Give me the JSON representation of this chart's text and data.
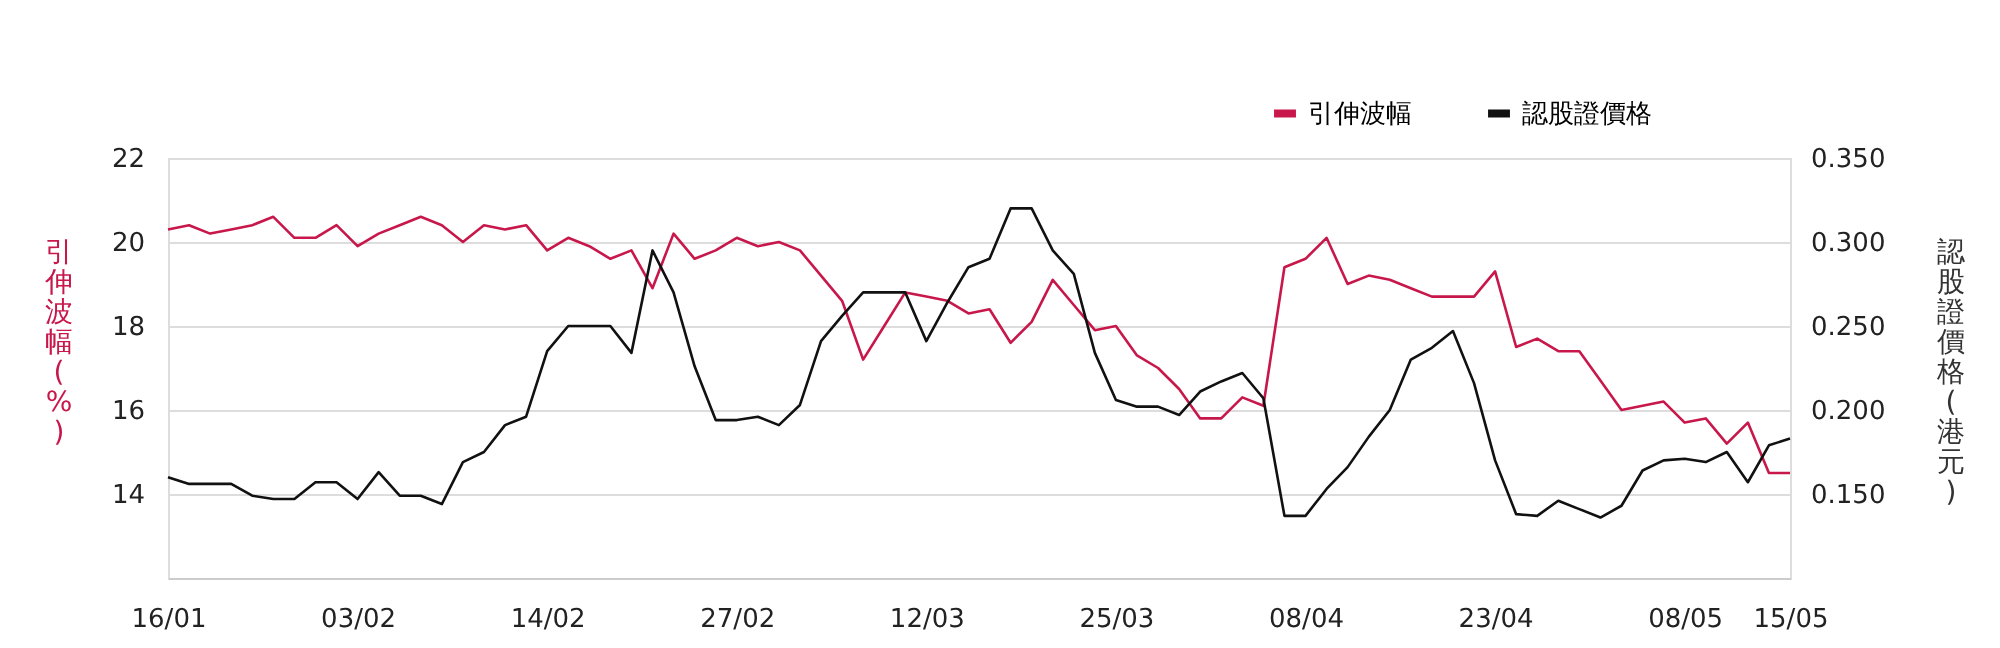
{
  "chart_data": {
    "type": "line",
    "ylabel": "引伸波幅(%)",
    "y2label": "認股證價格(港元)",
    "categories": [
      "16/01",
      null,
      null,
      null,
      null,
      null,
      null,
      null,
      null,
      "03/02",
      null,
      null,
      null,
      null,
      null,
      null,
      null,
      null,
      "14/02",
      null,
      null,
      null,
      null,
      null,
      null,
      null,
      null,
      "27/02",
      null,
      null,
      null,
      null,
      null,
      null,
      null,
      null,
      "12/03",
      null,
      null,
      null,
      null,
      null,
      null,
      null,
      null,
      "25/03",
      null,
      null,
      null,
      null,
      null,
      null,
      null,
      null,
      "08/04",
      null,
      null,
      null,
      null,
      null,
      null,
      null,
      null,
      "23/04",
      null,
      null,
      null,
      null,
      null,
      null,
      null,
      null,
      "08/05",
      null,
      null,
      null,
      null,
      "15/05"
    ],
    "series": [
      {
        "name": "引伸波幅",
        "color": "#c8174a",
        "axis": "y",
        "values": [
          20.3,
          20.4,
          20.2,
          20.3,
          20.4,
          20.6,
          20.1,
          20.1,
          20.4,
          19.9,
          20.2,
          20.4,
          20.6,
          20.4,
          20.0,
          20.4,
          20.3,
          20.4,
          19.8,
          20.1,
          19.9,
          19.6,
          19.8,
          18.9,
          20.2,
          19.6,
          19.8,
          20.1,
          19.9,
          20.0,
          19.8,
          19.2,
          18.6,
          17.2,
          18.0,
          18.8,
          18.7,
          18.6,
          18.3,
          18.4,
          17.6,
          18.1,
          19.1,
          18.5,
          17.9,
          18.0,
          17.3,
          17.0,
          16.5,
          15.8,
          15.8,
          16.3,
          16.1,
          19.4,
          19.6,
          20.1,
          19.0,
          19.2,
          19.1,
          18.9,
          18.7,
          18.7,
          18.7,
          19.3,
          17.5,
          17.7,
          17.4,
          17.4,
          16.7,
          16.0,
          16.1,
          16.2,
          15.7,
          15.8,
          15.2,
          15.7,
          14.5,
          14.5
        ]
      },
      {
        "name": "認股證價格",
        "color": "#111111",
        "axis": "y2",
        "values": [
          0.16,
          0.156,
          0.156,
          0.156,
          0.149,
          0.147,
          0.147,
          0.157,
          0.157,
          0.147,
          0.163,
          0.149,
          0.149,
          0.144,
          0.169,
          0.175,
          0.191,
          0.196,
          0.235,
          0.25,
          0.25,
          0.25,
          0.234,
          0.295,
          0.27,
          0.226,
          0.194,
          0.194,
          0.196,
          0.191,
          0.203,
          0.241,
          0.256,
          0.27,
          0.27,
          0.27,
          0.241,
          0.264,
          0.285,
          0.29,
          0.32,
          0.32,
          0.295,
          0.281,
          0.234,
          0.206,
          0.202,
          0.202,
          0.197,
          0.211,
          0.217,
          0.222,
          0.207,
          0.137,
          0.137,
          0.153,
          0.166,
          0.184,
          0.2,
          0.23,
          0.237,
          0.247,
          0.216,
          0.17,
          0.138,
          0.137,
          0.146,
          0.141,
          0.136,
          0.143,
          0.164,
          0.17,
          0.171,
          0.169,
          0.175,
          0.157,
          0.179,
          0.183
        ]
      }
    ],
    "ylim": [
      12,
      22
    ],
    "yticks": [
      14,
      16,
      18,
      20,
      22
    ],
    "y2lim": [
      0.1,
      0.35
    ],
    "y2ticks": [
      {
        "value": 0.15,
        "label": "0.150"
      },
      {
        "value": 0.2,
        "label": "0.200"
      },
      {
        "value": 0.25,
        "label": "0.250"
      },
      {
        "value": 0.3,
        "label": "0.300"
      },
      {
        "value": 0.35,
        "label": "0.350"
      }
    ],
    "grid": "y",
    "legend": "top right",
    "marker": "none",
    "line_style": "solid"
  }
}
